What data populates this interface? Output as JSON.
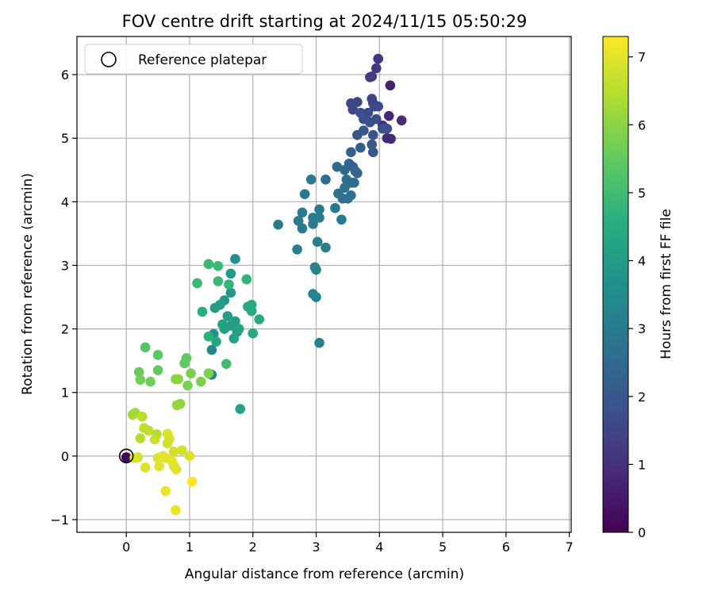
{
  "chart_data": {
    "type": "scatter",
    "title": "FOV centre drift starting at 2024/11/15 05:50:29",
    "xlabel": "Angular distance from reference (arcmin)",
    "ylabel": "Rotation from reference (arcmin)",
    "xlim": [
      -0.78,
      7.03
    ],
    "ylim": [
      -1.2,
      6.6
    ],
    "xticks": [
      0,
      1,
      2,
      3,
      4,
      5,
      6,
      7
    ],
    "yticks": [
      -1,
      0,
      1,
      2,
      3,
      4,
      5,
      6
    ],
    "grid": true,
    "legend": {
      "placement": "top-left",
      "entries": [
        "Reference platepar"
      ]
    },
    "colorbar": {
      "label": "Hours from first FF file",
      "colormap": "viridis",
      "range": [
        0,
        7.3
      ],
      "ticks": [
        0,
        1,
        2,
        3,
        4,
        5,
        6,
        7
      ]
    },
    "reference_point": {
      "x": 0,
      "y": 0
    },
    "points": [
      [
        0.0,
        -0.02,
        0.1
      ],
      [
        3.98,
        6.25,
        1.1
      ],
      [
        3.95,
        6.1,
        1.2
      ],
      [
        4.17,
        5.83,
        0.7
      ],
      [
        3.88,
        5.97,
        1.3
      ],
      [
        3.85,
        5.96,
        1.3
      ],
      [
        4.35,
        5.28,
        0.9
      ],
      [
        4.15,
        5.35,
        0.8
      ],
      [
        4.12,
        5.0,
        0.8
      ],
      [
        4.18,
        4.99,
        0.8
      ],
      [
        4.05,
        5.2,
        0.9
      ],
      [
        3.65,
        5.57,
        1.5
      ],
      [
        3.55,
        5.55,
        1.6
      ],
      [
        3.58,
        5.45,
        1.6
      ],
      [
        3.7,
        5.4,
        1.7
      ],
      [
        3.82,
        5.4,
        1.6
      ],
      [
        3.9,
        5.55,
        1.5
      ],
      [
        3.88,
        5.62,
        1.5
      ],
      [
        3.92,
        5.5,
        1.6
      ],
      [
        3.98,
        5.5,
        1.6
      ],
      [
        3.75,
        5.3,
        1.8
      ],
      [
        3.85,
        5.25,
        1.8
      ],
      [
        3.95,
        5.3,
        1.7
      ],
      [
        4.05,
        5.15,
        1.8
      ],
      [
        4.12,
        5.15,
        1.8
      ],
      [
        3.9,
        5.05,
        1.9
      ],
      [
        3.75,
        5.12,
        2.0
      ],
      [
        3.65,
        5.05,
        2.0
      ],
      [
        3.88,
        4.9,
        2.0
      ],
      [
        3.9,
        4.78,
        2.0
      ],
      [
        3.7,
        4.85,
        2.1
      ],
      [
        3.55,
        4.78,
        2.2
      ],
      [
        3.52,
        4.6,
        2.3
      ],
      [
        3.58,
        4.55,
        2.3
      ],
      [
        3.62,
        4.48,
        2.4
      ],
      [
        3.65,
        4.45,
        2.4
      ],
      [
        3.45,
        4.5,
        2.4
      ],
      [
        3.33,
        4.55,
        2.5
      ],
      [
        3.15,
        4.35,
        2.6
      ],
      [
        3.48,
        4.35,
        2.6
      ],
      [
        3.55,
        4.3,
        2.6
      ],
      [
        3.6,
        4.3,
        2.6
      ],
      [
        3.45,
        4.22,
        2.7
      ],
      [
        3.35,
        4.13,
        2.7
      ],
      [
        3.42,
        4.05,
        2.7
      ],
      [
        3.5,
        4.05,
        2.7
      ],
      [
        3.55,
        4.1,
        2.7
      ],
      [
        2.92,
        4.35,
        2.9
      ],
      [
        2.82,
        4.12,
        2.9
      ],
      [
        2.78,
        3.83,
        3.0
      ],
      [
        2.72,
        3.7,
        3.0
      ],
      [
        2.78,
        3.58,
        3.0
      ],
      [
        2.95,
        3.75,
        3.0
      ],
      [
        3.05,
        3.88,
        3.0
      ],
      [
        2.95,
        3.65,
        3.0
      ],
      [
        3.05,
        3.75,
        3.0
      ],
      [
        3.3,
        3.9,
        2.9
      ],
      [
        3.4,
        3.72,
        2.9
      ],
      [
        2.4,
        3.64,
        3.0
      ],
      [
        2.7,
        3.25,
        3.1
      ],
      [
        3.02,
        3.37,
        3.1
      ],
      [
        3.15,
        3.28,
        3.1
      ],
      [
        2.98,
        2.97,
        3.2
      ],
      [
        3.0,
        2.93,
        3.2
      ],
      [
        2.95,
        2.55,
        3.3
      ],
      [
        3.0,
        2.5,
        3.3
      ],
      [
        3.05,
        1.78,
        3.2
      ],
      [
        1.35,
        1.28,
        3.3
      ],
      [
        1.35,
        1.67,
        3.4
      ],
      [
        1.72,
        3.1,
        3.6
      ],
      [
        1.38,
        1.92,
        3.7
      ],
      [
        1.65,
        2.57,
        3.8
      ],
      [
        1.65,
        2.87,
        3.9
      ],
      [
        1.55,
        2.45,
        3.9
      ],
      [
        1.4,
        2.33,
        4.0
      ],
      [
        1.48,
        2.38,
        4.0
      ],
      [
        1.52,
        2.07,
        4.1
      ],
      [
        1.55,
        2.0,
        4.1
      ],
      [
        1.6,
        2.2,
        4.1
      ],
      [
        1.65,
        2.05,
        4.1
      ],
      [
        1.72,
        2.12,
        4.1
      ],
      [
        1.75,
        1.95,
        4.2
      ],
      [
        1.7,
        1.85,
        4.2
      ],
      [
        1.78,
        2.0,
        4.2
      ],
      [
        1.42,
        1.8,
        4.3
      ],
      [
        1.8,
        0.74,
        4.2
      ],
      [
        1.92,
        2.35,
        4.4
      ],
      [
        1.98,
        2.38,
        4.4
      ],
      [
        1.98,
        2.28,
        4.4
      ],
      [
        2.1,
        2.15,
        4.4
      ],
      [
        2.0,
        1.93,
        4.4
      ],
      [
        1.2,
        2.27,
        4.5
      ],
      [
        1.3,
        1.88,
        4.6
      ],
      [
        1.9,
        2.78,
        4.7
      ],
      [
        1.62,
        2.7,
        4.8
      ],
      [
        1.3,
        3.02,
        4.9
      ],
      [
        1.45,
        2.99,
        4.9
      ],
      [
        1.12,
        2.72,
        4.9
      ],
      [
        1.45,
        2.75,
        4.9
      ],
      [
        1.58,
        1.45,
        5.0
      ],
      [
        0.3,
        1.71,
        5.3
      ],
      [
        0.5,
        1.59,
        5.4
      ],
      [
        0.5,
        1.35,
        5.5
      ],
      [
        0.95,
        1.54,
        5.5
      ],
      [
        0.92,
        1.46,
        5.5
      ],
      [
        0.2,
        1.32,
        5.6
      ],
      [
        0.38,
        1.17,
        5.7
      ],
      [
        0.22,
        1.2,
        5.7
      ],
      [
        1.02,
        1.3,
        5.8
      ],
      [
        0.97,
        1.11,
        5.8
      ],
      [
        1.18,
        1.17,
        5.8
      ],
      [
        1.3,
        1.3,
        5.8
      ],
      [
        0.78,
        1.21,
        6.0
      ],
      [
        0.82,
        1.21,
        6.0
      ],
      [
        0.85,
        0.82,
        6.0
      ],
      [
        0.8,
        0.8,
        6.1
      ],
      [
        0.1,
        0.65,
        6.3
      ],
      [
        0.14,
        0.68,
        6.3
      ],
      [
        0.25,
        0.62,
        6.5
      ],
      [
        0.28,
        0.44,
        6.6
      ],
      [
        0.35,
        0.4,
        6.6
      ],
      [
        0.48,
        0.34,
        6.4
      ],
      [
        0.22,
        0.28,
        6.5
      ],
      [
        0.45,
        0.26,
        6.7
      ],
      [
        0.65,
        0.35,
        6.9
      ],
      [
        0.68,
        0.27,
        6.9
      ],
      [
        0.65,
        0.2,
        6.8
      ],
      [
        0.75,
        0.07,
        6.8
      ],
      [
        0.88,
        0.09,
        6.8
      ],
      [
        0.5,
        -0.03,
        6.9
      ],
      [
        0.18,
        -0.02,
        6.8
      ],
      [
        0.13,
        -0.03,
        6.9
      ],
      [
        0.58,
        0.0,
        7.0
      ],
      [
        1.0,
        0.0,
        6.9
      ],
      [
        0.72,
        -0.08,
        7.0
      ],
      [
        0.62,
        -0.03,
        7.0
      ],
      [
        0.3,
        -0.18,
        6.9
      ],
      [
        0.52,
        -0.16,
        7.0
      ],
      [
        0.75,
        -0.15,
        7.0
      ],
      [
        0.79,
        -0.21,
        7.0
      ],
      [
        0.62,
        -0.55,
        7.1
      ],
      [
        0.78,
        -0.85,
        7.1
      ],
      [
        1.04,
        -0.4,
        7.3
      ]
    ]
  }
}
